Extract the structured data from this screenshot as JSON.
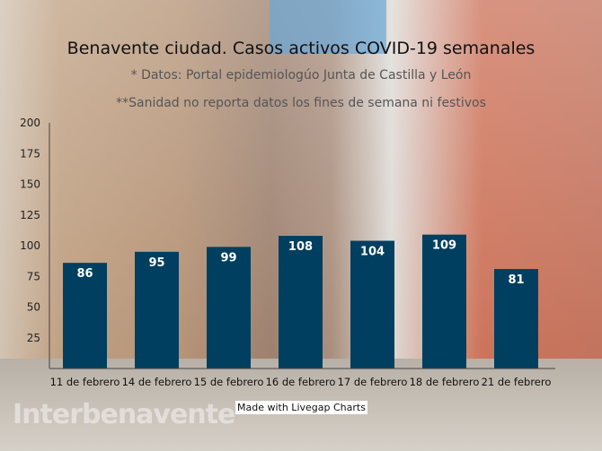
{
  "chart_data": {
    "type": "bar",
    "title": "Benavente ciudad. Casos activos COVID-19 semanales",
    "subtitle": "* Datos: Portal epidemiologúo Junta de Castilla y León",
    "subtitle2": "**Sanidad no reporta datos los fines de semana ni festivos",
    "categories": [
      "11 de febrero",
      "14 de febrero",
      "15 de febrero",
      "16 de febrero",
      "17 de febrero",
      "18 de febrero",
      "21 de febrero"
    ],
    "values": [
      86,
      95,
      99,
      108,
      104,
      109,
      81
    ],
    "ylim": [
      0,
      200
    ],
    "yticks": [
      25,
      50,
      75,
      100,
      125,
      150,
      175,
      200
    ],
    "bar_color": "#003f5f",
    "grid": false,
    "legend": "none"
  },
  "credit": "Made with Livegap Charts",
  "watermark": "Interbenavente"
}
